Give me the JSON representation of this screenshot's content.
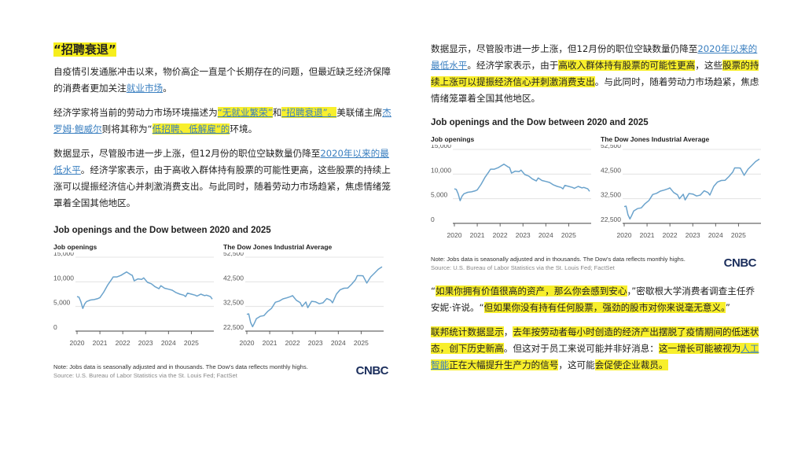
{
  "left": {
    "heading": "“招聘衰退”",
    "paragraphs": [
      [
        {
          "t": "自疫情引发通胀冲击以来，物价高企一直是个长期存在的问题，但最近缺乏经济保障的消费者更加关注"
        },
        {
          "t": "就业市场",
          "s": "link"
        },
        {
          "t": "。"
        }
      ],
      [
        {
          "t": "经济学家将当前的劳动力市场环境描述为"
        },
        {
          "t": "“无就业繁荣”",
          "s": "hl-link"
        },
        {
          "t": "和"
        },
        {
          "t": "“招聘衰退”。",
          "s": "hl-link"
        },
        {
          "t": "美联储主席"
        },
        {
          "t": "杰罗姆·鲍威尔",
          "s": "link"
        },
        {
          "t": "则将其称为“"
        },
        {
          "t": "低招聘、低解雇”的",
          "s": "hl-link"
        },
        {
          "t": "环境。"
        }
      ],
      [
        {
          "t": "数据显示，尽管股市进一步上涨，但12月份的职位空缺数量仍降至"
        },
        {
          "t": "2020年以来的最低水平",
          "s": "link"
        },
        {
          "t": "。经济学家表示，由于高收入群体持有股票的可能性更高，这些股票的持续上涨可以提振经济信心并刺激消费支出。与此同时，随着劳动力市场趋紧，焦虑情绪笼罩着全国其他地区。"
        }
      ]
    ]
  },
  "right": {
    "paragraphs": [
      [
        {
          "t": "数据显示，尽管股市进一步上涨，但12月份的职位空缺数量仍降至"
        },
        {
          "t": "2020年以来的最低水平",
          "s": "link"
        },
        {
          "t": "。经济学家表示，由于"
        },
        {
          "t": "高收入群体持有股票的可能性更高",
          "s": "hl"
        },
        {
          "t": "，这些"
        },
        {
          "t": "股票的持续上涨可以提振经济信心并刺激消费支出",
          "s": "hl"
        },
        {
          "t": "。与此同时，随着劳动力市场趋紧，焦虑情绪笼罩着全国其他地区。"
        }
      ]
    ],
    "paragraphs_after": [
      [
        {
          "t": "“"
        },
        {
          "t": "如果你拥有价值很高的资产，那么你会感到安心",
          "s": "hl"
        },
        {
          "t": "，”密歇根大学消费者调查主任乔安妮·许说。“"
        },
        {
          "t": "但如果你没有持有任何股票，强劲的股市对你来说毫无意义。",
          "s": "hl"
        },
        {
          "t": "”"
        }
      ],
      [
        {
          "t": "联邦统计数据显示",
          "s": "hl"
        },
        {
          "t": "，"
        },
        {
          "t": "去年按劳动者每小时创造的经济产出摆脱了疫情期间的低迷状态，创下历史新高",
          "s": "hl"
        },
        {
          "t": "。但这对于员工来说可能并非好消息："
        },
        {
          "t": "这一增长可能被视为",
          "s": "hl"
        },
        {
          "t": "人工智能",
          "s": "hl-link"
        },
        {
          "t": "正在大幅提升生产力的信号",
          "s": "hl"
        },
        {
          "t": "，这可能"
        },
        {
          "t": "会促使企业裁员。",
          "s": "hl"
        }
      ]
    ]
  },
  "figure": {
    "title": "Job openings and the Dow between 2020 and 2025",
    "note": "Note: Jobs data is seasonally adjusted and in thousands. The Dow's data reflects monthly highs.",
    "source": "Source: U.S. Bureau of Labor Statistics via the St. Louis Fed; FactSet",
    "logo": "CNBC"
  },
  "colors": {
    "line": "#6ba3cc",
    "highlight": "#f8ef2c",
    "link": "#3a7fc0"
  },
  "chart_data": [
    {
      "type": "line",
      "title": "Job openings",
      "yticks": [
        0,
        5000,
        10000,
        15000
      ],
      "ytick_labels": [
        "0",
        "5,000",
        "10,000",
        "15,000"
      ],
      "ylim": [
        0,
        15000
      ],
      "xticks": [
        "2020",
        "2021",
        "2022",
        "2023",
        "2024",
        "2025"
      ],
      "xlim": [
        "2020-01",
        "2025-12"
      ],
      "grid": true,
      "points": [
        [
          "2020-01",
          7000
        ],
        [
          "2020-02",
          6900
        ],
        [
          "2020-03",
          6000
        ],
        [
          "2020-04",
          4600
        ],
        [
          "2020-05",
          5500
        ],
        [
          "2020-06",
          6000
        ],
        [
          "2020-08",
          6300
        ],
        [
          "2020-10",
          6400
        ],
        [
          "2020-12",
          6600
        ],
        [
          "2021-01",
          6800
        ],
        [
          "2021-03",
          7900
        ],
        [
          "2021-05",
          9300
        ],
        [
          "2021-07",
          10400
        ],
        [
          "2021-08",
          11000
        ],
        [
          "2021-10",
          11000
        ],
        [
          "2021-12",
          11300
        ],
        [
          "2022-03",
          12000
        ],
        [
          "2022-05",
          11500
        ],
        [
          "2022-06",
          11300
        ],
        [
          "2022-07",
          10200
        ],
        [
          "2022-09",
          10600
        ],
        [
          "2022-11",
          10500
        ],
        [
          "2022-12",
          10800
        ],
        [
          "2023-02",
          9900
        ],
        [
          "2023-04",
          9600
        ],
        [
          "2023-06",
          9000
        ],
        [
          "2023-08",
          8600
        ],
        [
          "2023-09",
          9200
        ],
        [
          "2023-11",
          8700
        ],
        [
          "2024-01",
          8500
        ],
        [
          "2024-03",
          8300
        ],
        [
          "2024-05",
          7800
        ],
        [
          "2024-07",
          7500
        ],
        [
          "2024-09",
          7300
        ],
        [
          "2024-10",
          7000
        ],
        [
          "2024-11",
          7700
        ],
        [
          "2025-01",
          7500
        ],
        [
          "2025-03",
          7300
        ],
        [
          "2025-04",
          7100
        ],
        [
          "2025-06",
          7500
        ],
        [
          "2025-08",
          7200
        ],
        [
          "2025-09",
          7300
        ],
        [
          "2025-11",
          7000
        ],
        [
          "2025-12",
          6500
        ]
      ]
    },
    {
      "type": "line",
      "title": "The Dow Jones Industrial Average",
      "yticks": [
        22500,
        32500,
        42500,
        52500
      ],
      "ytick_labels": [
        "22,500",
        "32,500",
        "42,500",
        "52,500"
      ],
      "ylim": [
        22500,
        52500
      ],
      "xticks": [
        "2020",
        "2021",
        "2022",
        "2023",
        "2024",
        "2025"
      ],
      "xlim": [
        "2020-01",
        "2025-12"
      ],
      "grid": true,
      "points": [
        [
          "2020-01",
          29300
        ],
        [
          "2020-02",
          29500
        ],
        [
          "2020-03",
          26000
        ],
        [
          "2020-04",
          24300
        ],
        [
          "2020-05",
          25800
        ],
        [
          "2020-06",
          27500
        ],
        [
          "2020-08",
          28500
        ],
        [
          "2020-10",
          28800
        ],
        [
          "2020-12",
          30500
        ],
        [
          "2021-02",
          31800
        ],
        [
          "2021-04",
          34200
        ],
        [
          "2021-06",
          34700
        ],
        [
          "2021-08",
          35600
        ],
        [
          "2021-10",
          36000
        ],
        [
          "2021-12",
          36500
        ],
        [
          "2022-01",
          36900
        ],
        [
          "2022-03",
          35000
        ],
        [
          "2022-05",
          34100
        ],
        [
          "2022-06",
          32500
        ],
        [
          "2022-08",
          34300
        ],
        [
          "2022-09",
          32000
        ],
        [
          "2022-11",
          34600
        ],
        [
          "2023-01",
          34400
        ],
        [
          "2023-03",
          33600
        ],
        [
          "2023-05",
          34000
        ],
        [
          "2023-07",
          35700
        ],
        [
          "2023-09",
          35000
        ],
        [
          "2023-10",
          34000
        ],
        [
          "2023-12",
          37500
        ],
        [
          "2024-02",
          39300
        ],
        [
          "2024-04",
          39900
        ],
        [
          "2024-06",
          40000
        ],
        [
          "2024-08",
          41500
        ],
        [
          "2024-10",
          43300
        ],
        [
          "2024-11",
          45000
        ],
        [
          "2025-01",
          45000
        ],
        [
          "2025-02",
          44900
        ],
        [
          "2025-04",
          42000
        ],
        [
          "2025-06",
          44500
        ],
        [
          "2025-08",
          46000
        ],
        [
          "2025-10",
          47600
        ],
        [
          "2025-12",
          48600
        ]
      ]
    }
  ]
}
